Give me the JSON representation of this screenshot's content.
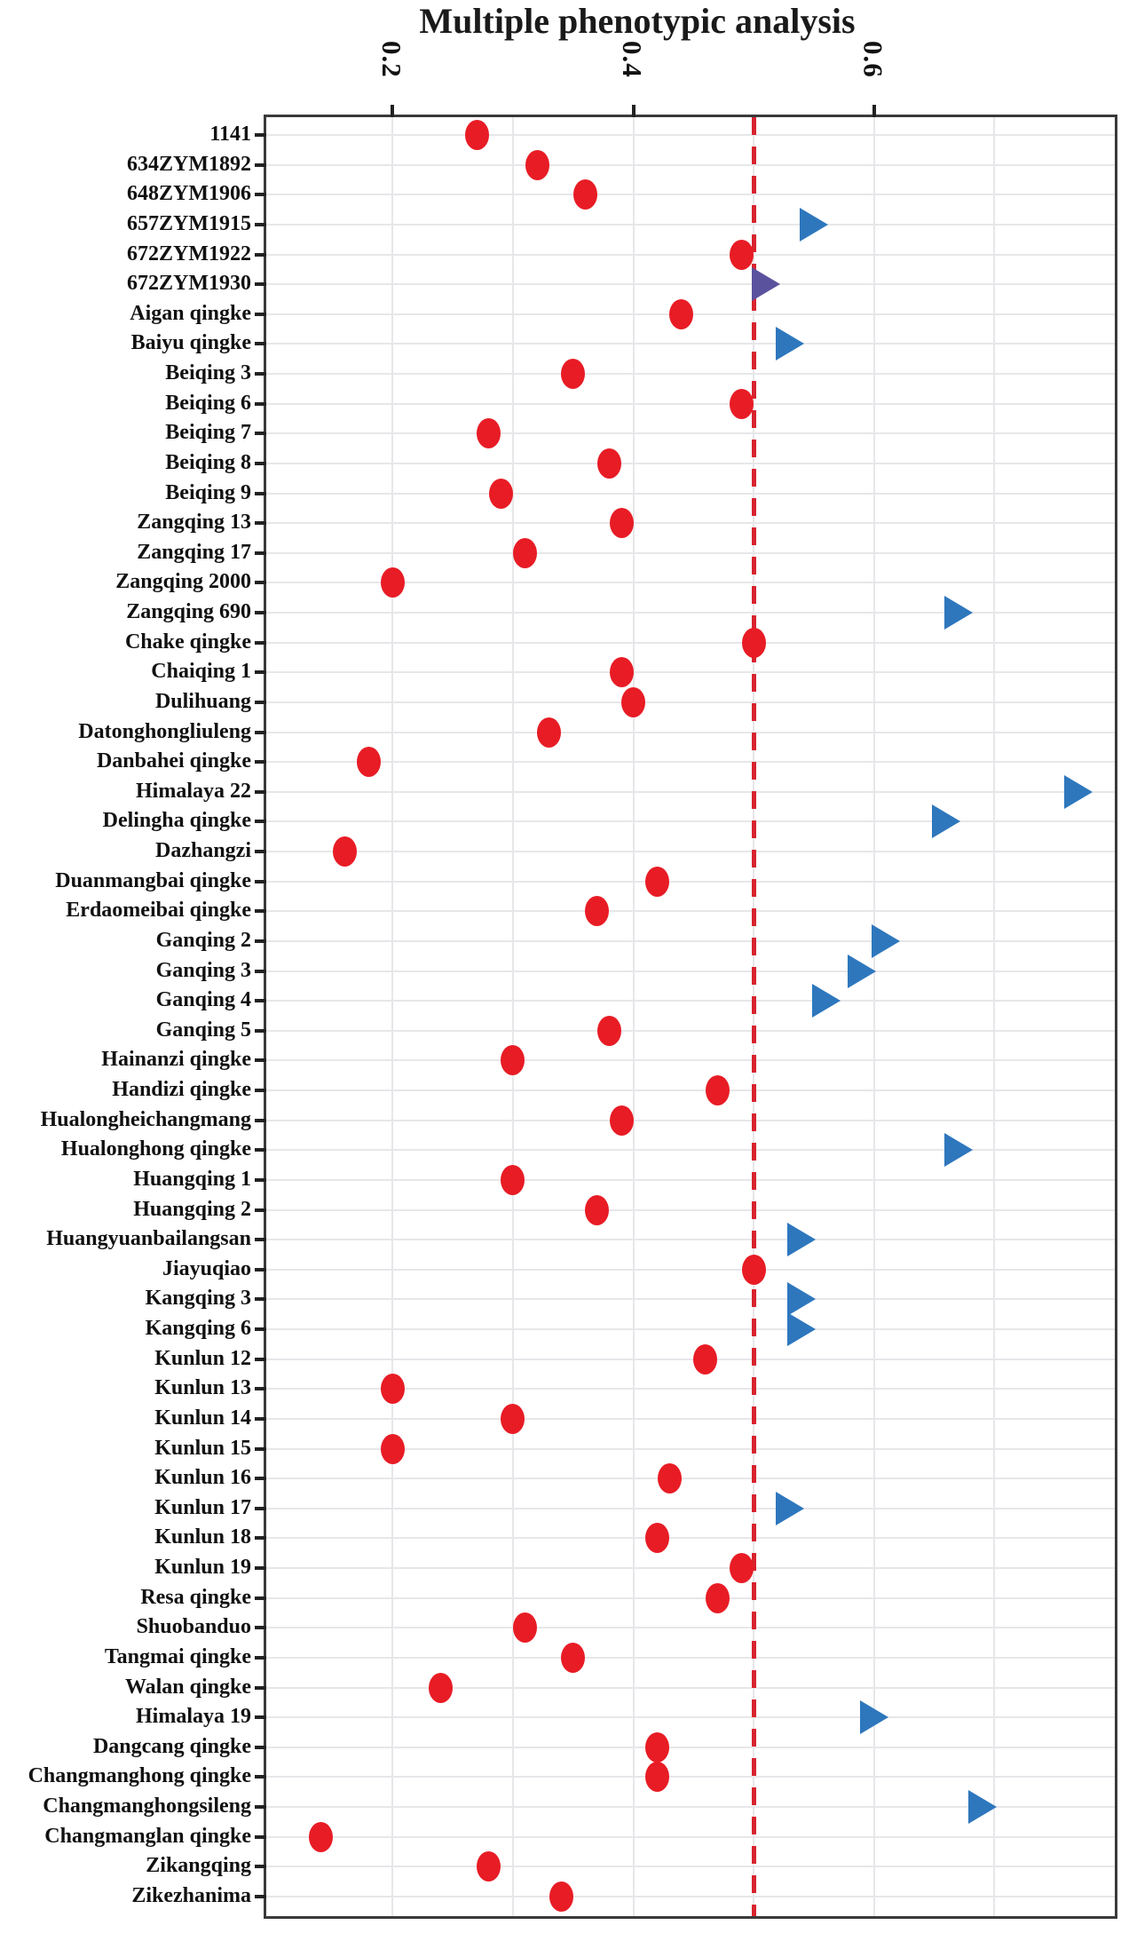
{
  "page": {
    "title": "Multiple phenotypic analysis"
  },
  "colors": {
    "frame": "#3a3a3a",
    "grid": "#e7e7ea",
    "text": "#111111",
    "circle": "#e81c25",
    "triangle": "#2e77bd",
    "triangle_alt": "#5b529e",
    "reference_line": "#d8232e"
  },
  "chart_data": {
    "type": "scatter",
    "title": "Multiple phenotypic analysis",
    "orientation": "horizontal-categories",
    "x_axis": {
      "position": "top",
      "range": [
        0.095,
        0.8
      ],
      "tick_values": [
        0.2,
        0.4,
        0.6
      ],
      "tick_labels": [
        "0.2",
        "0.4",
        "0.6"
      ],
      "tick_label_rotation_deg": 90,
      "gridline_values": [
        0.2,
        0.3,
        0.4,
        0.5,
        0.6,
        0.7
      ]
    },
    "reference_line": {
      "value": 0.5,
      "style": "dashed",
      "color": "#d8232e"
    },
    "marker_styles": {
      "circle": {
        "shape": "ellipse",
        "color": "#e81c25"
      },
      "triangle": {
        "shape": "right-pointing-triangle",
        "color": "#2e77bd"
      }
    },
    "legend": null,
    "rows": [
      {
        "label": "1141",
        "marker": "circle",
        "value": 0.27
      },
      {
        "label": "634ZYM1892",
        "marker": "circle",
        "value": 0.32
      },
      {
        "label": "648ZYM1906",
        "marker": "circle",
        "value": 0.36
      },
      {
        "label": "657ZYM1915",
        "marker": "triangle",
        "value": 0.55
      },
      {
        "label": "672ZYM1922",
        "marker": "circle",
        "value": 0.49
      },
      {
        "label": "672ZYM1930",
        "marker": "triangle",
        "value": 0.51,
        "color": "#5b529e"
      },
      {
        "label": "Aigan qingke",
        "marker": "circle",
        "value": 0.44
      },
      {
        "label": "Baiyu qingke",
        "marker": "triangle",
        "value": 0.53
      },
      {
        "label": "Beiqing 3",
        "marker": "circle",
        "value": 0.35
      },
      {
        "label": "Beiqing 6",
        "marker": "circle",
        "value": 0.49
      },
      {
        "label": "Beiqing 7",
        "marker": "circle",
        "value": 0.28
      },
      {
        "label": "Beiqing 8",
        "marker": "circle",
        "value": 0.38
      },
      {
        "label": "Beiqing 9",
        "marker": "circle",
        "value": 0.29
      },
      {
        "label": "Zangqing 13",
        "marker": "circle",
        "value": 0.39
      },
      {
        "label": "Zangqing 17",
        "marker": "circle",
        "value": 0.31
      },
      {
        "label": "Zangqing 2000",
        "marker": "circle",
        "value": 0.2
      },
      {
        "label": "Zangqing 690",
        "marker": "triangle",
        "value": 0.67
      },
      {
        "label": "Chake qingke",
        "marker": "circle",
        "value": 0.5
      },
      {
        "label": "Chaiqing 1",
        "marker": "circle",
        "value": 0.39
      },
      {
        "label": "Dulihuang",
        "marker": "circle",
        "value": 0.4
      },
      {
        "label": "Datonghongliuleng",
        "marker": "circle",
        "value": 0.33
      },
      {
        "label": "Danbahei qingke",
        "marker": "circle",
        "value": 0.18
      },
      {
        "label": "Himalaya 22",
        "marker": "triangle",
        "value": 0.77
      },
      {
        "label": "Delingha qingke",
        "marker": "triangle",
        "value": 0.66
      },
      {
        "label": "Dazhangzi",
        "marker": "circle",
        "value": 0.16
      },
      {
        "label": "Duanmangbai qingke",
        "marker": "circle",
        "value": 0.42
      },
      {
        "label": "Erdaomeibai qingke",
        "marker": "circle",
        "value": 0.37
      },
      {
        "label": "Ganqing 2",
        "marker": "triangle",
        "value": 0.61
      },
      {
        "label": "Ganqing 3",
        "marker": "triangle",
        "value": 0.59
      },
      {
        "label": "Ganqing 4",
        "marker": "triangle",
        "value": 0.56
      },
      {
        "label": "Ganqing 5",
        "marker": "circle",
        "value": 0.38
      },
      {
        "label": "Hainanzi qingke",
        "marker": "circle",
        "value": 0.3
      },
      {
        "label": "Handizi qingke",
        "marker": "circle",
        "value": 0.47
      },
      {
        "label": "Hualongheichangmang",
        "marker": "circle",
        "value": 0.39
      },
      {
        "label": "Hualonghong qingke",
        "marker": "triangle",
        "value": 0.67
      },
      {
        "label": "Huangqing 1",
        "marker": "circle",
        "value": 0.3
      },
      {
        "label": "Huangqing 2",
        "marker": "circle",
        "value": 0.37
      },
      {
        "label": "Huangyuanbailangsan",
        "marker": "triangle",
        "value": 0.54
      },
      {
        "label": "Jiayuqiao",
        "marker": "circle",
        "value": 0.5
      },
      {
        "label": "Kangqing 3",
        "marker": "triangle",
        "value": 0.54
      },
      {
        "label": "Kangqing 6",
        "marker": "triangle",
        "value": 0.54
      },
      {
        "label": "Kunlun 12",
        "marker": "circle",
        "value": 0.46
      },
      {
        "label": "Kunlun 13",
        "marker": "circle",
        "value": 0.2
      },
      {
        "label": "Kunlun 14",
        "marker": "circle",
        "value": 0.3
      },
      {
        "label": "Kunlun 15",
        "marker": "circle",
        "value": 0.2
      },
      {
        "label": "Kunlun 16",
        "marker": "circle",
        "value": 0.43
      },
      {
        "label": "Kunlun 17",
        "marker": "triangle",
        "value": 0.53
      },
      {
        "label": "Kunlun 18",
        "marker": "circle",
        "value": 0.42
      },
      {
        "label": "Kunlun 19",
        "marker": "circle",
        "value": 0.49
      },
      {
        "label": "Resa qingke",
        "marker": "circle",
        "value": 0.47
      },
      {
        "label": "Shuobanduo",
        "marker": "circle",
        "value": 0.31
      },
      {
        "label": "Tangmai qingke",
        "marker": "circle",
        "value": 0.35
      },
      {
        "label": "Walan qingke",
        "marker": "circle",
        "value": 0.24
      },
      {
        "label": "Himalaya 19",
        "marker": "triangle",
        "value": 0.6
      },
      {
        "label": "Dangcang qingke",
        "marker": "circle",
        "value": 0.42
      },
      {
        "label": "Changmanghong qingke",
        "marker": "circle",
        "value": 0.42
      },
      {
        "label": "Changmanghongsileng",
        "marker": "triangle",
        "value": 0.69
      },
      {
        "label": "Changmanglan qingke",
        "marker": "circle",
        "value": 0.14
      },
      {
        "label": "Zikangqing",
        "marker": "circle",
        "value": 0.28
      },
      {
        "label": "Zikezhanima",
        "marker": "circle",
        "value": 0.34
      }
    ]
  }
}
